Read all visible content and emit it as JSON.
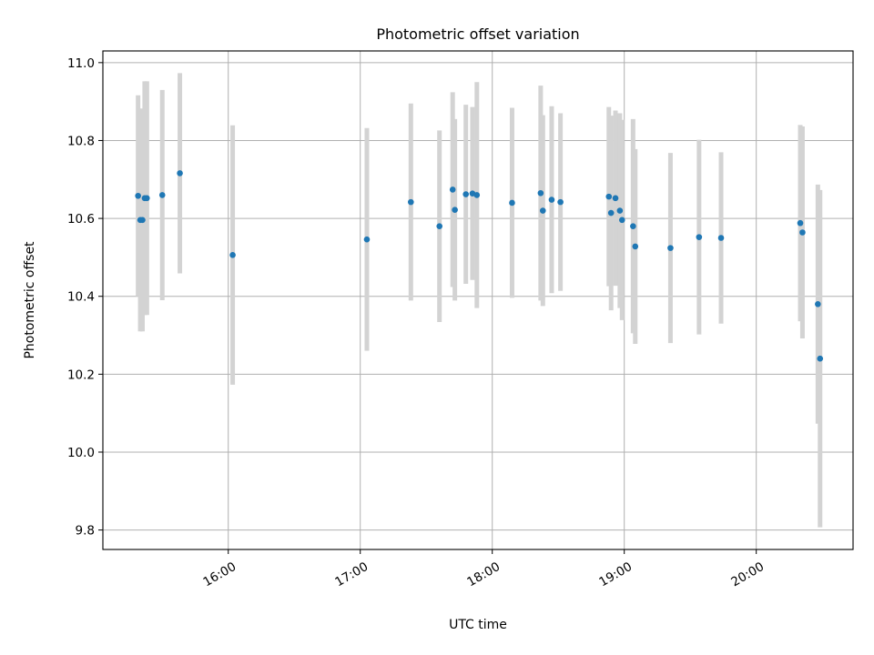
{
  "chart_data": {
    "type": "scatter",
    "title": "Photometric offset variation",
    "xlabel": "UTC time",
    "ylabel": "Photometric offset",
    "x_ticks": [
      "16:00",
      "17:00",
      "18:00",
      "19:00",
      "20:00"
    ],
    "y_ticks": [
      "9.8",
      "10.0",
      "10.2",
      "10.4",
      "10.6",
      "10.8",
      "11.0"
    ],
    "xlim": [
      "15:03",
      "20:44"
    ],
    "ylim": [
      9.75,
      11.03
    ],
    "grid": true,
    "colors": {
      "marker": "#1f77b4",
      "errorbar": "#d3d3d3",
      "grid": "#b0b0b0"
    },
    "points": [
      {
        "x": "15:19",
        "y": 10.658,
        "yerr": 0.258
      },
      {
        "x": "15:20",
        "y": 10.596,
        "yerr": 0.286
      },
      {
        "x": "15:21",
        "y": 10.596,
        "yerr": 0.286
      },
      {
        "x": "15:22",
        "y": 10.652,
        "yerr": 0.3
      },
      {
        "x": "15:23",
        "y": 10.652,
        "yerr": 0.3
      },
      {
        "x": "15:30",
        "y": 10.66,
        "yerr": 0.27
      },
      {
        "x": "15:38",
        "y": 10.716,
        "yerr": 0.257
      },
      {
        "x": "16:02",
        "y": 10.506,
        "yerr": 0.333
      },
      {
        "x": "17:03",
        "y": 10.546,
        "yerr": 0.286
      },
      {
        "x": "17:23",
        "y": 10.642,
        "yerr": 0.253
      },
      {
        "x": "17:36",
        "y": 10.58,
        "yerr": 0.246
      },
      {
        "x": "17:42",
        "y": 10.674,
        "yerr": 0.25
      },
      {
        "x": "17:43",
        "y": 10.622,
        "yerr": 0.233
      },
      {
        "x": "17:48",
        "y": 10.662,
        "yerr": 0.23
      },
      {
        "x": "17:51",
        "y": 10.664,
        "yerr": 0.222
      },
      {
        "x": "17:53",
        "y": 10.66,
        "yerr": 0.29
      },
      {
        "x": "18:09",
        "y": 10.64,
        "yerr": 0.244
      },
      {
        "x": "18:22",
        "y": 10.665,
        "yerr": 0.276
      },
      {
        "x": "18:23",
        "y": 10.62,
        "yerr": 0.245
      },
      {
        "x": "18:27",
        "y": 10.648,
        "yerr": 0.24
      },
      {
        "x": "18:31",
        "y": 10.642,
        "yerr": 0.228
      },
      {
        "x": "18:53",
        "y": 10.656,
        "yerr": 0.23
      },
      {
        "x": "18:54",
        "y": 10.614,
        "yerr": 0.25
      },
      {
        "x": "18:56",
        "y": 10.652,
        "yerr": 0.225
      },
      {
        "x": "18:58",
        "y": 10.62,
        "yerr": 0.25
      },
      {
        "x": "18:59",
        "y": 10.596,
        "yerr": 0.257
      },
      {
        "x": "19:04",
        "y": 10.58,
        "yerr": 0.275
      },
      {
        "x": "19:05",
        "y": 10.528,
        "yerr": 0.25
      },
      {
        "x": "19:21",
        "y": 10.524,
        "yerr": 0.244
      },
      {
        "x": "19:34",
        "y": 10.552,
        "yerr": 0.25
      },
      {
        "x": "19:44",
        "y": 10.55,
        "yerr": 0.22
      },
      {
        "x": "20:20",
        "y": 10.588,
        "yerr": 0.252
      },
      {
        "x": "20:21",
        "y": 10.564,
        "yerr": 0.272
      },
      {
        "x": "20:28",
        "y": 10.38,
        "yerr": 0.307
      },
      {
        "x": "20:29",
        "y": 10.24,
        "yerr": 0.433
      }
    ]
  }
}
